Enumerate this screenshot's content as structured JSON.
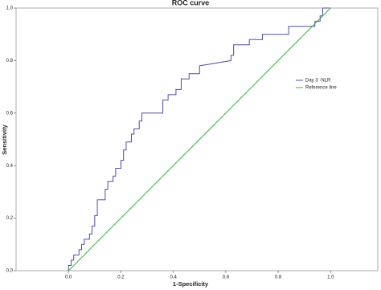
{
  "chart_data": {
    "type": "line",
    "title": "ROC curve",
    "x_label": "1-Specificity",
    "y_label": "Sensitivity",
    "xlim": [
      -0.2,
      1.18
    ],
    "ylim": [
      0,
      1
    ],
    "xticks": [
      {
        "value": 0,
        "label": "0.0"
      },
      {
        "value": 0.2,
        "label": "0.2"
      },
      {
        "value": 0.4,
        "label": "0.4"
      },
      {
        "value": 0.6,
        "label": "0.6"
      },
      {
        "value": 0.8,
        "label": "0.8"
      },
      {
        "value": 1,
        "label": "1.0"
      }
    ],
    "yticks": [
      {
        "value": 0,
        "label": "0.0"
      },
      {
        "value": 0.2,
        "label": "0.2"
      },
      {
        "value": 0.4,
        "label": "0.4"
      },
      {
        "value": 0.6,
        "label": "0.6"
      },
      {
        "value": 0.8,
        "label": "0.8"
      },
      {
        "value": 1,
        "label": "1.0"
      }
    ],
    "legend": "right",
    "series": [
      {
        "name": "Day 3 -NLR",
        "color": "#4e4ea6",
        "x": [
          0,
          0,
          0.01,
          0.01,
          0.02,
          0.02,
          0.04,
          0.04,
          0.05,
          0.05,
          0.06,
          0.06,
          0.08,
          0.08,
          0.09,
          0.09,
          0.1,
          0.1,
          0.11,
          0.11,
          0.14,
          0.14,
          0.15,
          0.15,
          0.17,
          0.17,
          0.18,
          0.18,
          0.2,
          0.2,
          0.21,
          0.21,
          0.22,
          0.22,
          0.24,
          0.24,
          0.25,
          0.25,
          0.27,
          0.27,
          0.28,
          0.28,
          0.36,
          0.36,
          0.38,
          0.38,
          0.41,
          0.41,
          0.43,
          0.43,
          0.46,
          0.46,
          0.5,
          0.5,
          0.62,
          0.62,
          0.63,
          0.63,
          0.69,
          0.69,
          0.74,
          0.74,
          0.84,
          0.84,
          0.94,
          0.94,
          0.96,
          0.96,
          0.97,
          0.97,
          1
        ],
        "values": [
          0,
          0.02,
          0.02,
          0.04,
          0.04,
          0.06,
          0.06,
          0.08,
          0.08,
          0.1,
          0.1,
          0.12,
          0.12,
          0.14,
          0.14,
          0.17,
          0.17,
          0.21,
          0.21,
          0.27,
          0.27,
          0.31,
          0.31,
          0.34,
          0.34,
          0.36,
          0.36,
          0.39,
          0.39,
          0.42,
          0.42,
          0.46,
          0.46,
          0.49,
          0.49,
          0.52,
          0.52,
          0.54,
          0.54,
          0.57,
          0.57,
          0.6,
          0.6,
          0.65,
          0.65,
          0.67,
          0.67,
          0.69,
          0.69,
          0.73,
          0.73,
          0.75,
          0.75,
          0.78,
          0.8,
          0.82,
          0.82,
          0.86,
          0.86,
          0.88,
          0.88,
          0.9,
          0.9,
          0.93,
          0.93,
          0.95,
          0.95,
          0.97,
          0.97,
          1,
          1
        ]
      },
      {
        "name": "Reference line",
        "color": "#3cb043",
        "x": [
          0,
          1
        ],
        "values": [
          0,
          1
        ]
      }
    ]
  }
}
